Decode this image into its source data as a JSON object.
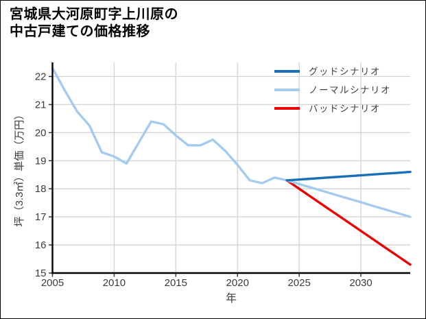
{
  "chart_data": {
    "type": "line",
    "title": "宮城県大河原町字上川原の中古戸建ての価格推移",
    "title_lines": [
      "宮城県大河原町字上川原の",
      "中古戸建ての価格推移"
    ],
    "xlabel": "年",
    "ylabel": "坪（3.3㎡）単価（万円）",
    "xlim": [
      2005,
      2034
    ],
    "ylim": [
      15,
      22.5
    ],
    "xticks": [
      2005,
      2010,
      2015,
      2020,
      2025,
      2030
    ],
    "yticks": [
      15,
      16,
      17,
      18,
      19,
      20,
      21,
      22
    ],
    "grid": true,
    "legend": {
      "position": "top-right",
      "entries": [
        "グッドシナリオ",
        "ノーマルシナリオ",
        "バッドシナリオ"
      ]
    },
    "colors": {
      "good": "#1a70b8",
      "normal": "#a3cbf0",
      "bad": "#ec0000",
      "grid": "#d2d2d2",
      "spine": "#000000",
      "tick": "#333333",
      "tick_label": "#3b3b3b",
      "legend_text": "#404040",
      "background": "#ffffff"
    },
    "series": [
      {
        "id": "good-scenario",
        "name": "グッドシナリオ",
        "in_legend": true,
        "color": "#1a70b8",
        "x": [
          2024,
          2025,
          2026,
          2027,
          2028,
          2029,
          2030,
          2031,
          2032,
          2033,
          2034
        ],
        "y": [
          18.3,
          18.33,
          18.36,
          18.39,
          18.42,
          18.45,
          18.48,
          18.51,
          18.54,
          18.57,
          18.6
        ]
      },
      {
        "id": "normal-scenario",
        "name": "ノーマルシナリオ",
        "in_legend": true,
        "color": "#a3cbf0",
        "x": [
          2024,
          2025,
          2026,
          2027,
          2028,
          2029,
          2030,
          2031,
          2032,
          2033,
          2034
        ],
        "y": [
          18.3,
          18.17,
          18.04,
          17.91,
          17.78,
          17.65,
          17.52,
          17.39,
          17.26,
          17.13,
          17.0
        ]
      },
      {
        "id": "bad-scenario",
        "name": "バッドシナリオ",
        "in_legend": true,
        "color": "#ec0000",
        "x": [
          2024,
          2025,
          2026,
          2027,
          2028,
          2029,
          2030,
          2031,
          2032,
          2033,
          2034
        ],
        "y": [
          18.3,
          18.0,
          17.7,
          17.4,
          17.1,
          16.8,
          16.5,
          16.2,
          15.9,
          15.6,
          15.3
        ]
      },
      {
        "id": "history",
        "name": "",
        "in_legend": false,
        "color": "#a3cbf0",
        "x": [
          2005,
          2006,
          2007,
          2008,
          2009,
          2010,
          2011,
          2012,
          2013,
          2014,
          2015,
          2016,
          2017,
          2018,
          2019,
          2020,
          2021,
          2022,
          2023,
          2024
        ],
        "y": [
          22.3,
          21.5,
          20.75,
          20.25,
          19.3,
          19.15,
          18.9,
          19.65,
          20.4,
          20.3,
          19.9,
          19.55,
          19.55,
          19.75,
          19.35,
          18.85,
          18.3,
          18.2,
          18.4,
          18.3
        ]
      }
    ]
  }
}
